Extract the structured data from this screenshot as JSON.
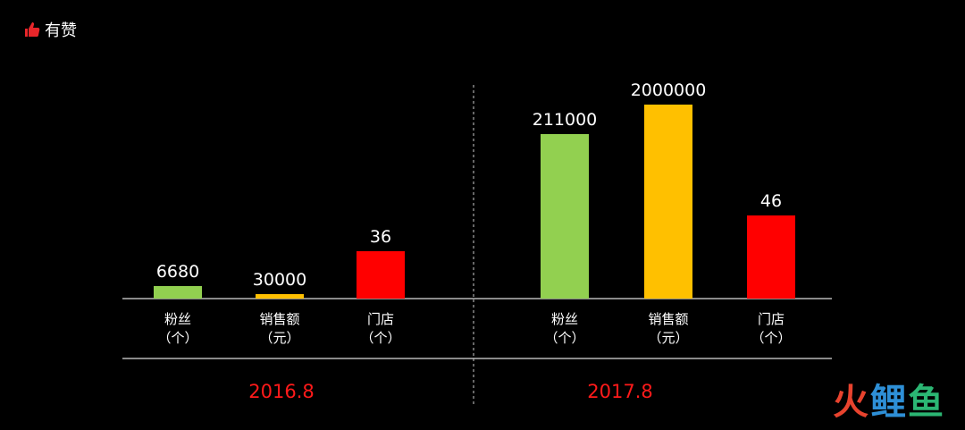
{
  "brand": {
    "logo_text": "有赞",
    "icon": "thumbs-up-icon",
    "icon_color": "#e8262a"
  },
  "watermark": {
    "text": [
      "火",
      "鲤",
      "鱼"
    ]
  },
  "colors": {
    "fans": "#92d050",
    "sales": "#ffc000",
    "stores": "#ff0000",
    "period_label": "#ff1a1a"
  },
  "chart_data": {
    "type": "bar",
    "categories": [
      "粉丝（个）",
      "销售额（元）",
      "门店（个）"
    ],
    "category_lines": [
      [
        "粉丝",
        "（个）"
      ],
      [
        "销售额",
        "（元）"
      ],
      [
        "门店",
        "（个）"
      ]
    ],
    "scale": "each bar scaled independently (not to a common axis)",
    "grid": false,
    "groups": [
      {
        "label": "2016.8",
        "values": [
          6680,
          30000,
          36
        ]
      },
      {
        "label": "2017.8",
        "values": [
          211000,
          2000000,
          46
        ]
      }
    ]
  }
}
